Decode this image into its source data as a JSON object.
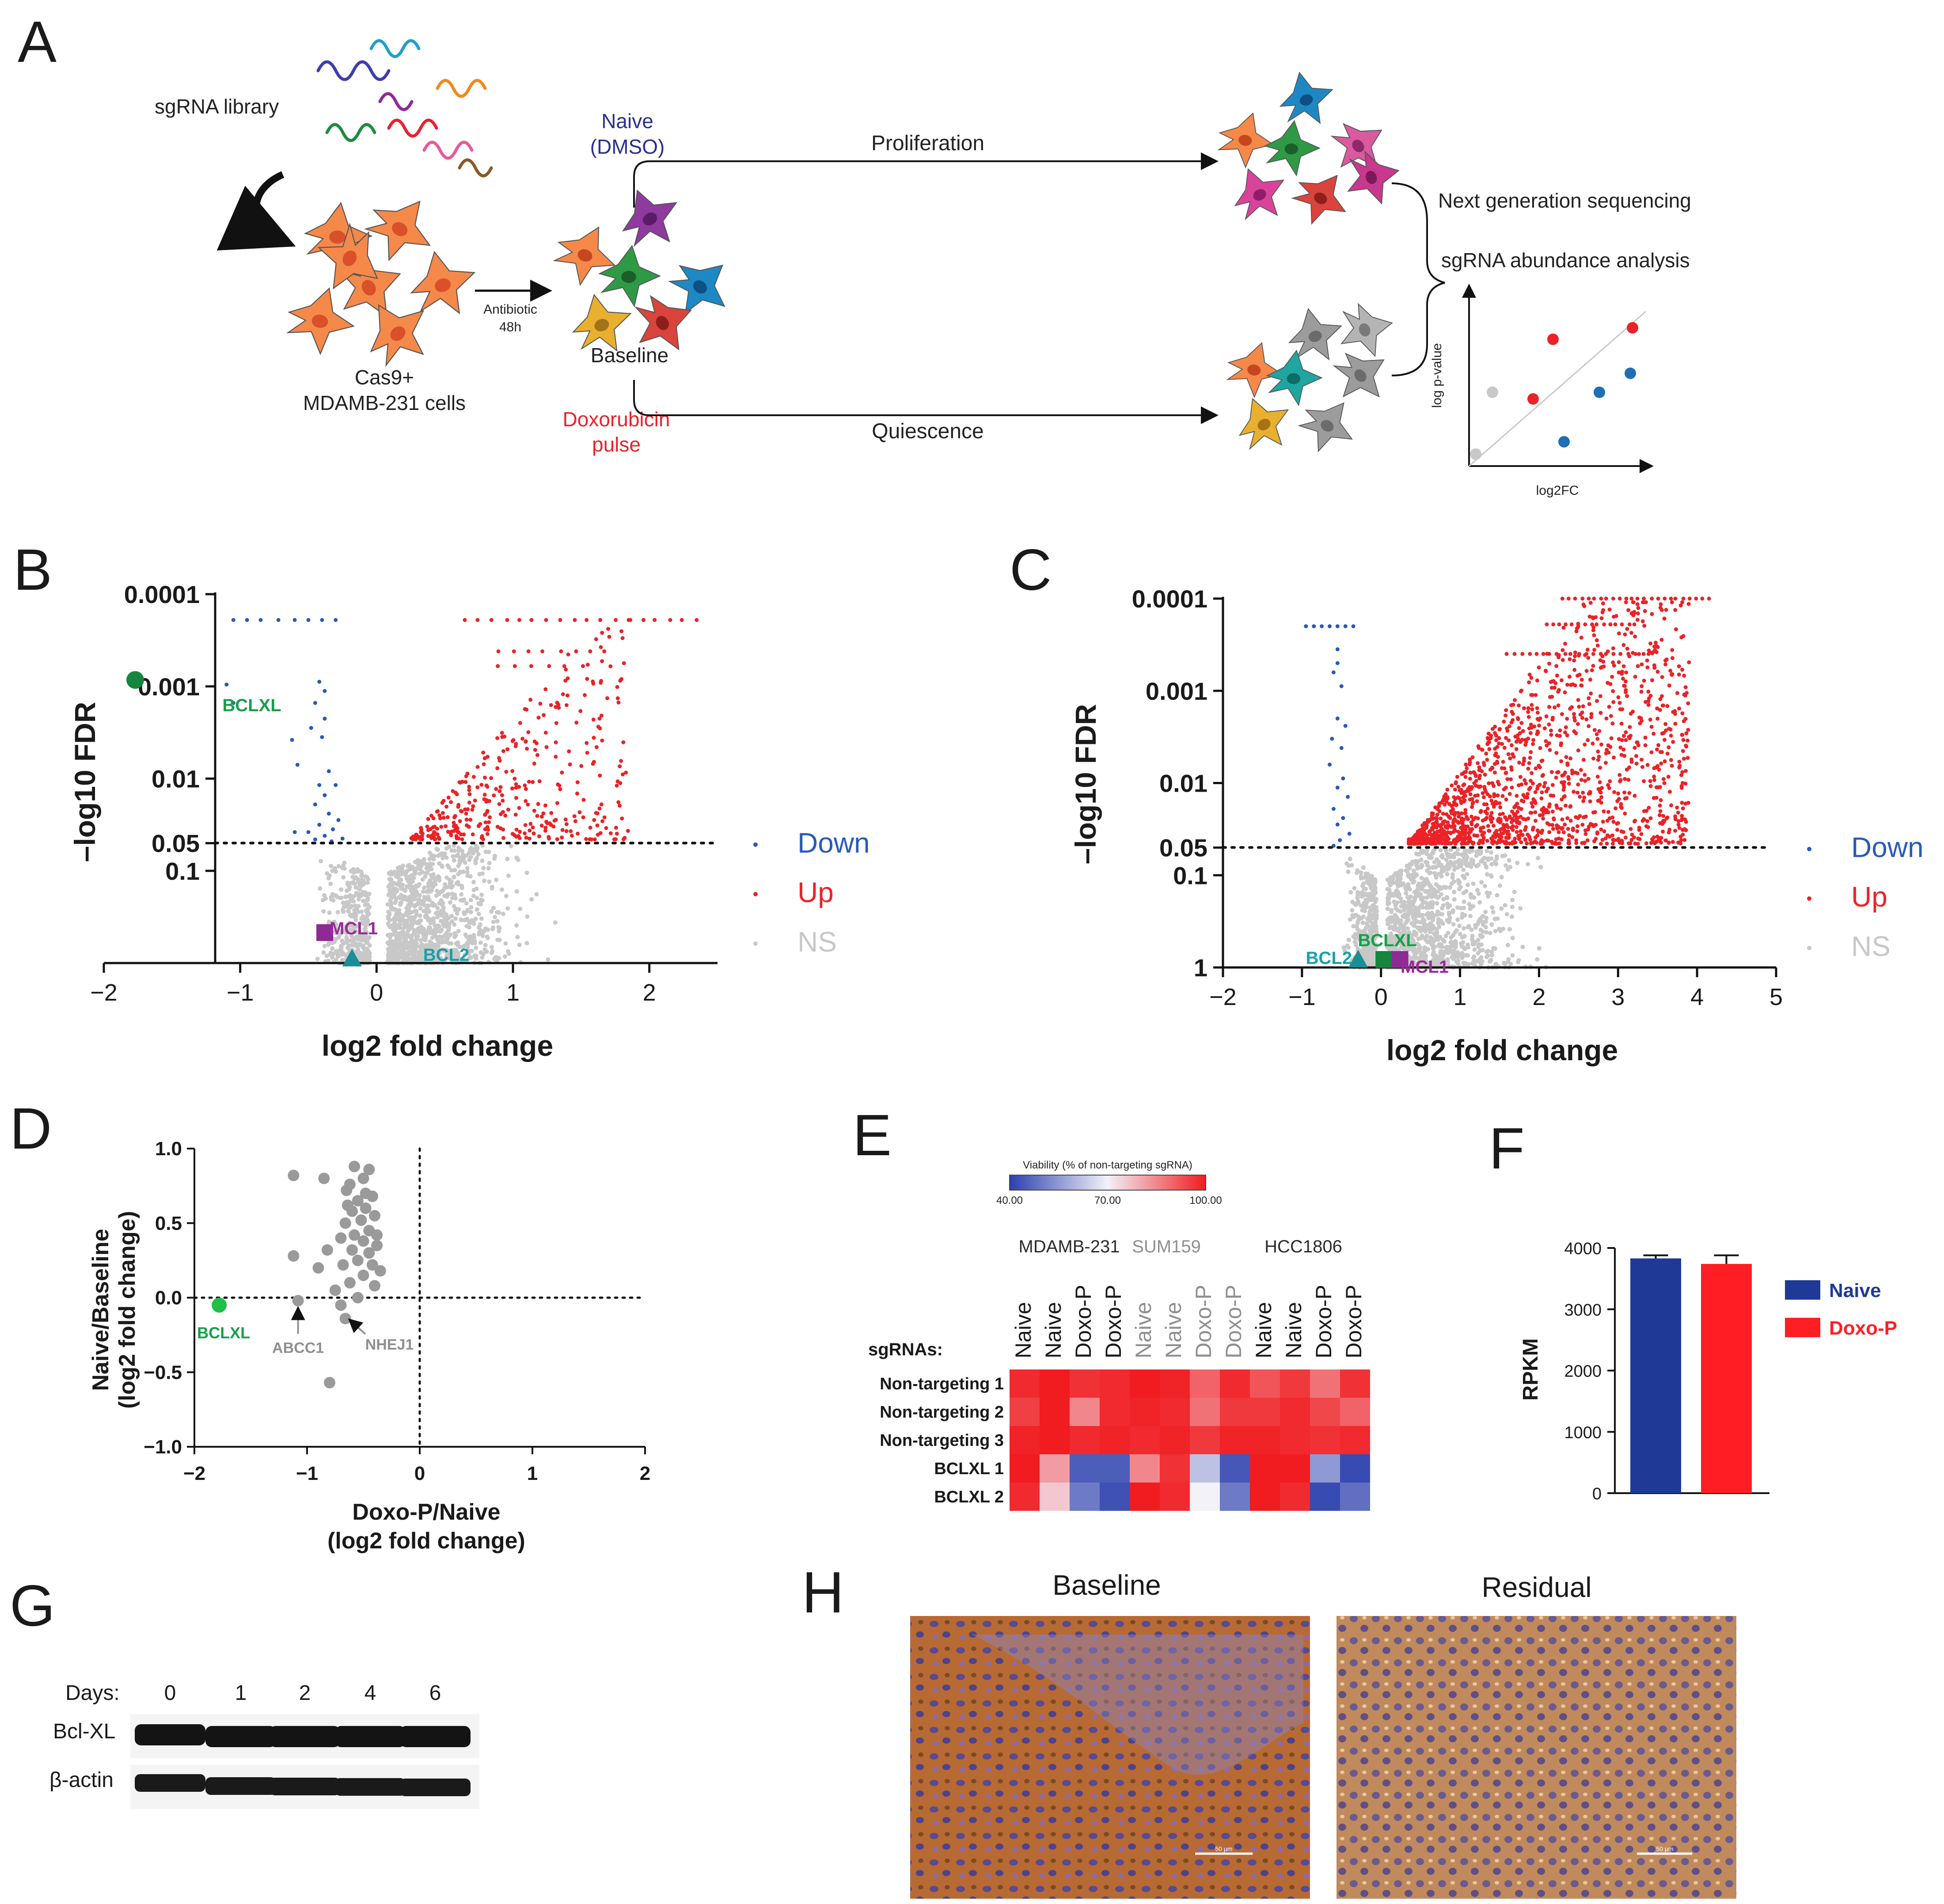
{
  "panel_letters": {
    "a": "A",
    "b": "B",
    "c": "C",
    "d": "D",
    "e": "E",
    "f": "F",
    "g": "G",
    "h": "H"
  },
  "panel_a": {
    "sgrna_library": "sgRNA library",
    "cells_line1": "Cas9+",
    "cells_line2": "MDAMB-231 cells",
    "antibiotic": "Antibiotic",
    "antibiotic_time": "48h",
    "naive_line1": "Naive",
    "naive_line2": "(DMSO)",
    "baseline": "Baseline",
    "doxo_line1": "Doxorubicin",
    "doxo_line2": "pulse",
    "proliferation": "Proliferation",
    "quiescence": "Quiescence",
    "ngs": "Next generation sequencing",
    "abundance": "sgRNA abundance analysis",
    "mini_ylabel": "log p-value",
    "mini_xlabel": "log2FC",
    "colors": {
      "naive": "#2b2f8f",
      "doxo": "#e8232a"
    }
  },
  "chart_data": [
    {
      "id": "B",
      "type": "scatter",
      "title": "",
      "xlabel": "log2 fold change",
      "ylabel": "–log10 FDR",
      "xlim": [
        -2,
        2.5
      ],
      "ylim_log10": [
        0,
        4
      ],
      "x_ticks": [
        "−2",
        "−1",
        "0",
        "1",
        "2"
      ],
      "y_ticks": [
        "0.0001",
        "0.001",
        "0.01",
        "0.05",
        "0.1"
      ],
      "threshold_fdr": 0.05,
      "legend": [
        {
          "label": "Down",
          "color": "#2a5ab8"
        },
        {
          "label": "Up",
          "color": "#ec2227"
        },
        {
          "label": "NS",
          "color": "#c8c8c8"
        }
      ],
      "highlights": [
        {
          "label": "BCLXL",
          "x": -1.77,
          "y_neglog10": 3.07,
          "shape": "circle",
          "color": "#16853f",
          "label_color": "#14a04a"
        },
        {
          "label": "MCL1",
          "x": -0.38,
          "y_neglog10": 0.33,
          "shape": "square",
          "color": "#8e2a94",
          "label_color": "#9a2a9c"
        },
        {
          "label": "BCL2",
          "x": -0.18,
          "y_neglog10": 0.05,
          "shape": "triangle",
          "color": "#1a8d96",
          "label_color": "#1aa0a8"
        }
      ]
    },
    {
      "id": "C",
      "type": "scatter",
      "title": "",
      "xlabel": "log2 fold change",
      "ylabel": "–log10 FDR",
      "xlim": [
        -2,
        5
      ],
      "ylim_log10": [
        0,
        4
      ],
      "x_ticks": [
        "−2",
        "−1",
        "0",
        "1",
        "2",
        "3",
        "4",
        "5"
      ],
      "y_ticks": [
        "0.0001",
        "0.001",
        "0.01",
        "0.05",
        "0.1",
        "1"
      ],
      "threshold_fdr": 0.05,
      "legend": [
        {
          "label": "Down",
          "color": "#2a5ab8"
        },
        {
          "label": "Up",
          "color": "#ec2227"
        },
        {
          "label": "NS",
          "color": "#c8c8c8"
        }
      ],
      "highlights": [
        {
          "label": "BCLXL",
          "x": 0.02,
          "y_neglog10": 0.02,
          "shape": "square",
          "color": "#16853f",
          "label_color": "#14a04a"
        },
        {
          "label": "MCL1",
          "x": 0.1,
          "y_neglog10": 0.02,
          "shape": "square",
          "color": "#8e2a94",
          "label_color": "#9a2a9c"
        },
        {
          "label": "BCL2",
          "x": -0.15,
          "y_neglog10": 0.02,
          "shape": "triangle",
          "color": "#1a8d96",
          "label_color": "#1aa0a8"
        }
      ]
    },
    {
      "id": "D",
      "type": "scatter",
      "xlabel_line1": "Doxo-P/Naive",
      "xlabel_line2": "(log2 fold change)",
      "ylabel_line1": "Naive/Baseline",
      "ylabel_line2": "(log2 fold change)",
      "xlim": [
        -2,
        2
      ],
      "ylim": [
        -1,
        1
      ],
      "x_ticks": [
        "−2",
        "−1",
        "0",
        "1",
        "2"
      ],
      "y_ticks": [
        "1.0",
        "0.5",
        "0.0",
        "−0.5",
        "−1.0"
      ],
      "points": [
        [
          -1.12,
          0.82
        ],
        [
          -0.85,
          0.8
        ],
        [
          -0.65,
          0.72
        ],
        [
          -0.58,
          0.88
        ],
        [
          -0.45,
          0.86
        ],
        [
          -0.5,
          0.8
        ],
        [
          -0.62,
          0.76
        ],
        [
          -0.55,
          0.65
        ],
        [
          -0.42,
          0.68
        ],
        [
          -0.48,
          0.6
        ],
        [
          -0.6,
          0.58
        ],
        [
          -0.52,
          0.52
        ],
        [
          -0.4,
          0.55
        ],
        [
          -0.66,
          0.5
        ],
        [
          -0.45,
          0.45
        ],
        [
          -0.58,
          0.42
        ],
        [
          -0.7,
          0.4
        ],
        [
          -0.5,
          0.38
        ],
        [
          -0.38,
          0.42
        ],
        [
          -0.6,
          0.32
        ],
        [
          -0.45,
          0.3
        ],
        [
          -0.82,
          0.32
        ],
        [
          -0.55,
          0.25
        ],
        [
          -0.42,
          0.22
        ],
        [
          -0.68,
          0.22
        ],
        [
          -0.35,
          0.18
        ],
        [
          -1.12,
          0.28
        ],
        [
          -0.9,
          0.2
        ],
        [
          -0.5,
          0.15
        ],
        [
          -0.62,
          0.1
        ],
        [
          -0.4,
          0.08
        ],
        [
          -0.75,
          0.05
        ],
        [
          -0.55,
          0.0
        ],
        [
          -0.7,
          -0.05
        ],
        [
          -0.38,
          0.35
        ],
        [
          -0.48,
          0.7
        ],
        [
          -0.64,
          0.62
        ],
        [
          -0.8,
          -0.57
        ],
        [
          -1.08,
          -0.02
        ],
        [
          -0.66,
          -0.14
        ]
      ],
      "annotations": [
        {
          "label": "BCLXL",
          "x": -1.78,
          "y": -0.05,
          "color": "#1fbf4a"
        },
        {
          "label": "ABCC1",
          "x": -1.08,
          "y": -0.02,
          "color": "#8f8f8f"
        },
        {
          "label": "NHEJ1",
          "x": -0.66,
          "y": -0.14,
          "color": "#8f8f8f"
        }
      ]
    },
    {
      "id": "E",
      "type": "heatmap",
      "colorbar_title": "Viability (% of non-targeting sgRNA)",
      "colorbar_ticks": [
        "40.00",
        "70.00",
        "100.00"
      ],
      "cell_lines": [
        {
          "name": "MDAMB-231",
          "color": "#2b2b2b"
        },
        {
          "name": "SUM159",
          "color": "#8f8f8f"
        },
        {
          "name": "HCC1806",
          "color": "#2b2b2b"
        }
      ],
      "columns": [
        "Naive",
        "Naive",
        "Doxo-P",
        "Doxo-P",
        "Naive",
        "Naive",
        "Doxo-P",
        "Doxo-P",
        "Naive",
        "Naive",
        "Doxo-P",
        "Doxo-P"
      ],
      "rows_title": "sgRNAs:",
      "rows": [
        "Non-targeting 1",
        "Non-targeting 2",
        "Non-targeting 3",
        "BCLXL 1",
        "BCLXL 2"
      ],
      "values": [
        [
          98,
          100,
          97,
          98,
          100,
          99,
          90,
          98,
          92,
          96,
          88,
          97
        ],
        [
          95,
          100,
          85,
          98,
          99,
          98,
          88,
          96,
          96,
          98,
          94,
          90
        ],
        [
          99,
          100,
          98,
          99,
          98,
          99,
          96,
          99,
          99,
          98,
          97,
          98
        ],
        [
          100,
          82,
          45,
          45,
          85,
          97,
          62,
          44,
          100,
          100,
          55,
          42
        ],
        [
          98,
          76,
          50,
          43,
          100,
          98,
          70,
          50,
          100,
          98,
          42,
          48
        ]
      ]
    },
    {
      "id": "F",
      "type": "bar",
      "ylabel": "RPKM",
      "ylim": [
        0,
        4000
      ],
      "y_ticks": [
        "4000",
        "3000",
        "2000",
        "1000",
        "0"
      ],
      "categories": [
        "Naive",
        "Doxo-P"
      ],
      "values": [
        3830,
        3740
      ],
      "errors": [
        50,
        140
      ],
      "colors": [
        "#1e3a96",
        "#ff1e24"
      ]
    }
  ],
  "panel_g": {
    "days_label": "Days:",
    "days": [
      "0",
      "1",
      "2",
      "4",
      "6"
    ],
    "bands": [
      "Bcl-XL",
      "β-actin"
    ]
  },
  "panel_h": {
    "baseline": "Baseline",
    "residual": "Residual",
    "scale_bar": "50 µm"
  }
}
